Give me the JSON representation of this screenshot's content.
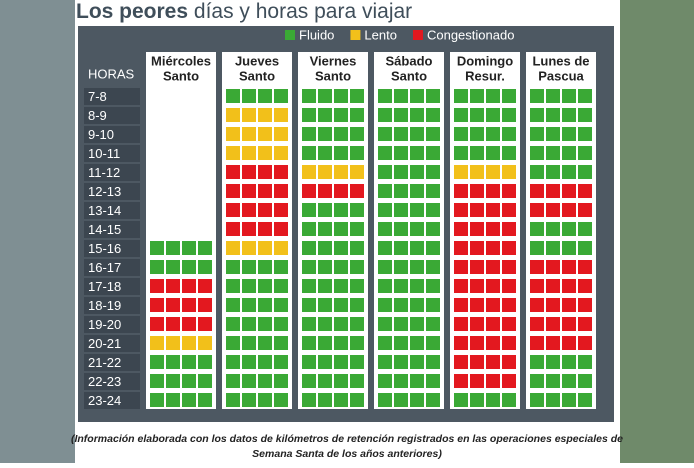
{
  "title_bold": "Los peores",
  "title_rest": "días y horas para viajar",
  "legend": [
    {
      "label": "Fluido",
      "color": "#3aa935"
    },
    {
      "label": "Lento",
      "color": "#f2c01a"
    },
    {
      "label": "Congestionado",
      "color": "#e3181f"
    }
  ],
  "hours_header": "HORAS",
  "days": [
    [
      "Miércoles",
      "Santo"
    ],
    [
      "Jueves",
      "Santo"
    ],
    [
      "Viernes",
      "Santo"
    ],
    [
      "Sábado",
      "Santo"
    ],
    [
      "Domingo",
      "Resur."
    ],
    [
      "Lunes de",
      "Pascua"
    ]
  ],
  "hours": [
    "7-8",
    "8-9",
    "9-10",
    "10-11",
    "11-12",
    "12-13",
    "13-14",
    "14-15",
    "15-16",
    "16-17",
    "17-18",
    "18-19",
    "19-20",
    "20-21",
    "21-22",
    "22-23",
    "23-24"
  ],
  "grid": [
    [
      null,
      0,
      0,
      0,
      0,
      0
    ],
    [
      null,
      1,
      0,
      0,
      0,
      0
    ],
    [
      null,
      1,
      0,
      0,
      0,
      0
    ],
    [
      null,
      1,
      0,
      0,
      0,
      0
    ],
    [
      null,
      2,
      1,
      0,
      1,
      0
    ],
    [
      null,
      2,
      2,
      0,
      2,
      2
    ],
    [
      null,
      2,
      0,
      0,
      2,
      2
    ],
    [
      null,
      2,
      0,
      0,
      2,
      0
    ],
    [
      0,
      1,
      0,
      0,
      2,
      0
    ],
    [
      0,
      0,
      0,
      0,
      2,
      2
    ],
    [
      2,
      0,
      0,
      0,
      2,
      2
    ],
    [
      2,
      0,
      0,
      0,
      2,
      2
    ],
    [
      2,
      0,
      0,
      0,
      2,
      2
    ],
    [
      1,
      0,
      0,
      0,
      2,
      2
    ],
    [
      0,
      0,
      0,
      0,
      2,
      0
    ],
    [
      0,
      0,
      0,
      0,
      2,
      0
    ],
    [
      0,
      0,
      0,
      0,
      0,
      0
    ]
  ],
  "footnote": [
    "(Información elaborada con los datos de kilómetros de retención registrados en las operaciones especiales de",
    "Semana Santa de los años anteriores)"
  ]
}
